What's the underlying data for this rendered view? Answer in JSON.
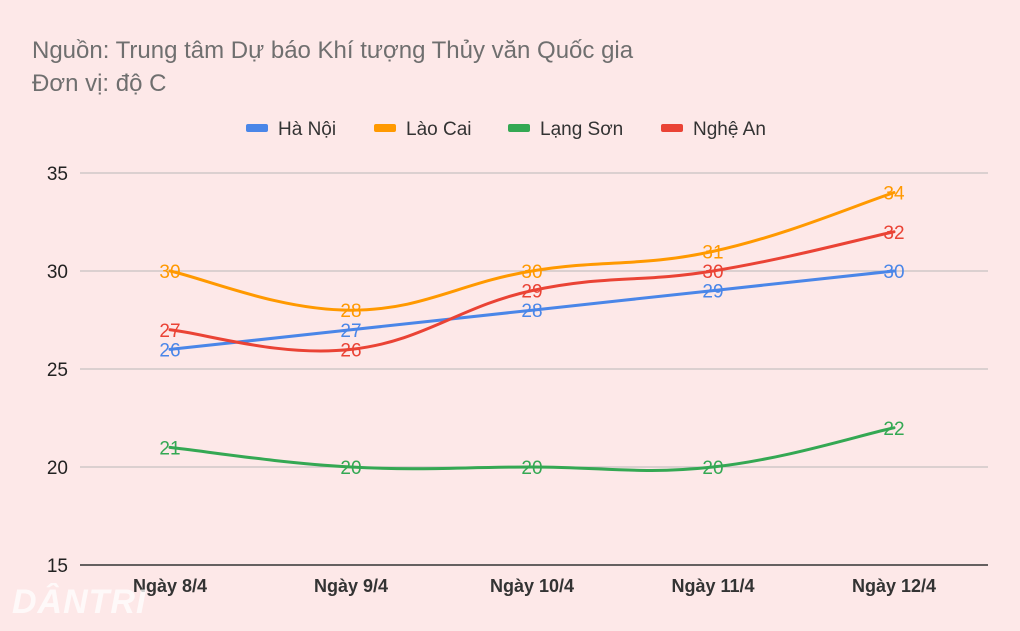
{
  "header": {
    "source": "Nguồn: Trung tâm Dự báo Khí tượng Thủy văn Quốc gia",
    "unit": "Đơn vị: độ C"
  },
  "watermark": "DÂNTRI",
  "chart_data": {
    "type": "line",
    "title": "",
    "xlabel": "",
    "ylabel": "",
    "categories": [
      "Ngày 8/4",
      "Ngày 9/4",
      "Ngày 10/4",
      "Ngày 11/4",
      "Ngày 12/4"
    ],
    "ylim": [
      15,
      35
    ],
    "yticks": [
      15,
      20,
      25,
      30,
      35
    ],
    "grid": true,
    "legend_position": "top",
    "series": [
      {
        "name": "Hà Nội",
        "color": "#4a86e8",
        "values": [
          26,
          27,
          28,
          29,
          30
        ],
        "labels": [
          "26",
          "27",
          "28",
          "29",
          "30"
        ]
      },
      {
        "name": "Lào Cai",
        "color": "#ff9900",
        "values": [
          30,
          28,
          30,
          31,
          34
        ],
        "labels": [
          "30",
          "28",
          "30",
          "31",
          "34"
        ]
      },
      {
        "name": "Lạng Sơn",
        "color": "#34a853",
        "values": [
          21,
          20,
          20,
          20,
          22
        ],
        "labels": [
          "21",
          "20",
          "20",
          "20",
          "22"
        ]
      },
      {
        "name": "Nghệ An",
        "color": "#ea4335",
        "values": [
          27,
          26,
          29,
          30,
          32
        ],
        "labels": [
          "27",
          "26",
          "29",
          "30",
          "32"
        ]
      }
    ]
  }
}
